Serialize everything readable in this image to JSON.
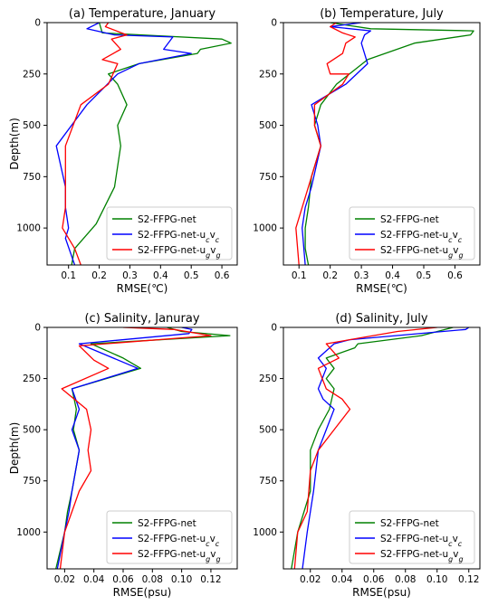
{
  "chart_data": [
    {
      "type": "line",
      "title": "(a) Temperature, January",
      "xlabel": "RMSE(℃)",
      "ylabel": "Depth(m)",
      "xlim": [
        0.03,
        0.65
      ],
      "ylim": [
        1180,
        0
      ],
      "xticks": [
        "0.1",
        "0.2",
        "0.3",
        "0.4",
        "0.5",
        "0.6"
      ],
      "xtick_values": [
        0.1,
        0.2,
        0.3,
        0.4,
        0.5,
        0.6
      ],
      "yticks": [
        "0",
        "250",
        "500",
        "750",
        "1000"
      ],
      "ytick_values": [
        0,
        250,
        500,
        750,
        1000
      ],
      "legend": "lower-right",
      "series": [
        {
          "name": "S2-FFPG-net",
          "color": "#008000",
          "x": [
            0.2,
            0.21,
            0.6,
            0.63,
            0.53,
            0.52,
            0.33,
            0.23,
            0.26,
            0.29,
            0.26,
            0.27,
            0.25,
            0.19,
            0.12,
            0.11
          ],
          "y": [
            0,
            50,
            80,
            100,
            130,
            150,
            200,
            250,
            300,
            400,
            500,
            600,
            800,
            980,
            1100,
            1180
          ]
        },
        {
          "name": "S2-FFPG-net-u_cv_c",
          "color": "#0000ff",
          "x": [
            0.2,
            0.16,
            0.25,
            0.44,
            0.41,
            0.5,
            0.33,
            0.26,
            0.16,
            0.06,
            0.09,
            0.09,
            0.1,
            0.09,
            0.12
          ],
          "y": [
            0,
            30,
            60,
            70,
            130,
            150,
            200,
            250,
            400,
            600,
            800,
            900,
            1000,
            1050,
            1180
          ]
        },
        {
          "name": "S2-FFPG-net-u_gv_g",
          "color": "#ff0000",
          "x": [
            0.23,
            0.22,
            0.29,
            0.24,
            0.27,
            0.21,
            0.26,
            0.23,
            0.14,
            0.09,
            0.09,
            0.09,
            0.08,
            0.12,
            0.14
          ],
          "y": [
            0,
            20,
            60,
            80,
            130,
            180,
            200,
            300,
            400,
            600,
            800,
            900,
            1000,
            1100,
            1180
          ]
        }
      ]
    },
    {
      "type": "line",
      "title": "(b) Temperature, July",
      "xlabel": "RMSE(℃)",
      "ylabel": "",
      "xlim": [
        0.05,
        0.68
      ],
      "ylim": [
        1180,
        0
      ],
      "xticks": [
        "0.1",
        "0.2",
        "0.3",
        "0.4",
        "0.5",
        "0.6"
      ],
      "xtick_values": [
        0.1,
        0.2,
        0.3,
        0.4,
        0.5,
        0.6
      ],
      "yticks": [
        "0",
        "250",
        "500",
        "750",
        "1000"
      ],
      "ytick_values": [
        0,
        250,
        500,
        750,
        1000
      ],
      "legend": "lower-right",
      "series": [
        {
          "name": "S2-FFPG-net",
          "color": "#008000",
          "x": [
            0.2,
            0.33,
            0.66,
            0.65,
            0.47,
            0.32,
            0.22,
            0.17,
            0.15,
            0.16,
            0.17,
            0.14,
            0.13,
            0.12,
            0.12,
            0.13
          ],
          "y": [
            0,
            30,
            40,
            60,
            100,
            180,
            300,
            400,
            500,
            550,
            600,
            750,
            900,
            1000,
            1100,
            1180
          ]
        },
        {
          "name": "S2-FFPG-net-u_cv_c",
          "color": "#0000ff",
          "x": [
            0.3,
            0.2,
            0.33,
            0.31,
            0.3,
            0.32,
            0.25,
            0.14,
            0.16,
            0.17,
            0.14,
            0.12,
            0.11,
            0.12
          ],
          "y": [
            0,
            20,
            40,
            60,
            100,
            200,
            300,
            400,
            500,
            600,
            800,
            900,
            1000,
            1180
          ]
        },
        {
          "name": "S2-FFPG-net-u_gv_g",
          "color": "#ff0000",
          "x": [
            0.22,
            0.2,
            0.24,
            0.28,
            0.25,
            0.24,
            0.19,
            0.2,
            0.26,
            0.24,
            0.15,
            0.15,
            0.17,
            0.13,
            0.09,
            0.1
          ],
          "y": [
            0,
            20,
            50,
            70,
            100,
            150,
            200,
            250,
            250,
            300,
            400,
            500,
            600,
            800,
            1000,
            1180
          ]
        }
      ]
    },
    {
      "type": "line",
      "title": "(c) Salinity, Januray",
      "xlabel": "RMSE(psu)",
      "ylabel": "Depth(m)",
      "xlim": [
        0.008,
        0.138
      ],
      "ylim": [
        1180,
        0
      ],
      "xticks": [
        "0.02",
        "0.04",
        "0.06",
        "0.08",
        "0.10",
        "0.12"
      ],
      "xtick_values": [
        0.02,
        0.04,
        0.06,
        0.08,
        0.1,
        0.12
      ],
      "yticks": [
        "0",
        "250",
        "500",
        "750",
        "1000"
      ],
      "ytick_values": [
        0,
        250,
        500,
        750,
        1000
      ],
      "legend": "lower-right",
      "series": [
        {
          "name": "S2-FFPG-net",
          "color": "#008000",
          "x": [
            0.09,
            0.1,
            0.133,
            0.038,
            0.06,
            0.072,
            0.025,
            0.028,
            0.026,
            0.03,
            0.025,
            0.022,
            0.02,
            0.014
          ],
          "y": [
            0,
            20,
            40,
            80,
            150,
            200,
            300,
            400,
            500,
            600,
            800,
            900,
            1000,
            1180
          ]
        },
        {
          "name": "S2-FFPG-net-u_cv_c",
          "color": "#0000ff",
          "x": [
            0.1,
            0.107,
            0.105,
            0.03,
            0.07,
            0.025,
            0.03,
            0.025,
            0.03,
            0.025,
            0.023,
            0.02,
            0.015
          ],
          "y": [
            0,
            10,
            30,
            80,
            200,
            300,
            400,
            500,
            600,
            800,
            900,
            1000,
            1180
          ]
        },
        {
          "name": "S2-FFPG-net-u_gv_g",
          "color": "#ff0000",
          "x": [
            0.06,
            0.095,
            0.12,
            0.03,
            0.04,
            0.05,
            0.018,
            0.035,
            0.038,
            0.036,
            0.038,
            0.03,
            0.025,
            0.02,
            0.017
          ],
          "y": [
            0,
            10,
            40,
            90,
            160,
            200,
            300,
            400,
            500,
            600,
            700,
            800,
            900,
            1000,
            1180
          ]
        }
      ]
    },
    {
      "type": "line",
      "title": "(d) Salinity, July",
      "xlabel": "RMSE(psu)",
      "ylabel": "",
      "xlim": [
        0.003,
        0.127
      ],
      "ylim": [
        1180,
        0
      ],
      "xticks": [
        "0.02",
        "0.04",
        "0.06",
        "0.08",
        "0.10",
        "0.12"
      ],
      "xtick_values": [
        0.02,
        0.04,
        0.06,
        0.08,
        0.1,
        0.12
      ],
      "yticks": [
        "0",
        "250",
        "500",
        "750",
        "1000"
      ],
      "ytick_values": [
        0,
        250,
        500,
        750,
        1000
      ],
      "legend": "lower-right",
      "series": [
        {
          "name": "S2-FFPG-net",
          "color": "#008000",
          "x": [
            0.11,
            0.09,
            0.05,
            0.048,
            0.03,
            0.035,
            0.03,
            0.035,
            0.032,
            0.025,
            0.02,
            0.02,
            0.012,
            0.008
          ],
          "y": [
            0,
            40,
            80,
            100,
            150,
            200,
            250,
            300,
            400,
            500,
            600,
            800,
            1000,
            1180
          ]
        },
        {
          "name": "S2-FFPG-net-u_cv_c",
          "color": "#0000ff",
          "x": [
            0.12,
            0.118,
            0.045,
            0.035,
            0.025,
            0.03,
            0.025,
            0.028,
            0.035,
            0.03,
            0.025,
            0.022,
            0.018,
            0.015
          ],
          "y": [
            0,
            10,
            60,
            80,
            150,
            200,
            300,
            350,
            400,
            500,
            600,
            800,
            1000,
            1180
          ]
        },
        {
          "name": "S2-FFPG-net-u_gv_g",
          "color": "#ff0000",
          "x": [
            0.1,
            0.075,
            0.03,
            0.038,
            0.025,
            0.03,
            0.04,
            0.045,
            0.035,
            0.025,
            0.02,
            0.018,
            0.012,
            0.01
          ],
          "y": [
            0,
            20,
            80,
            150,
            200,
            300,
            350,
            400,
            500,
            600,
            700,
            900,
            1000,
            1180
          ]
        }
      ]
    }
  ]
}
